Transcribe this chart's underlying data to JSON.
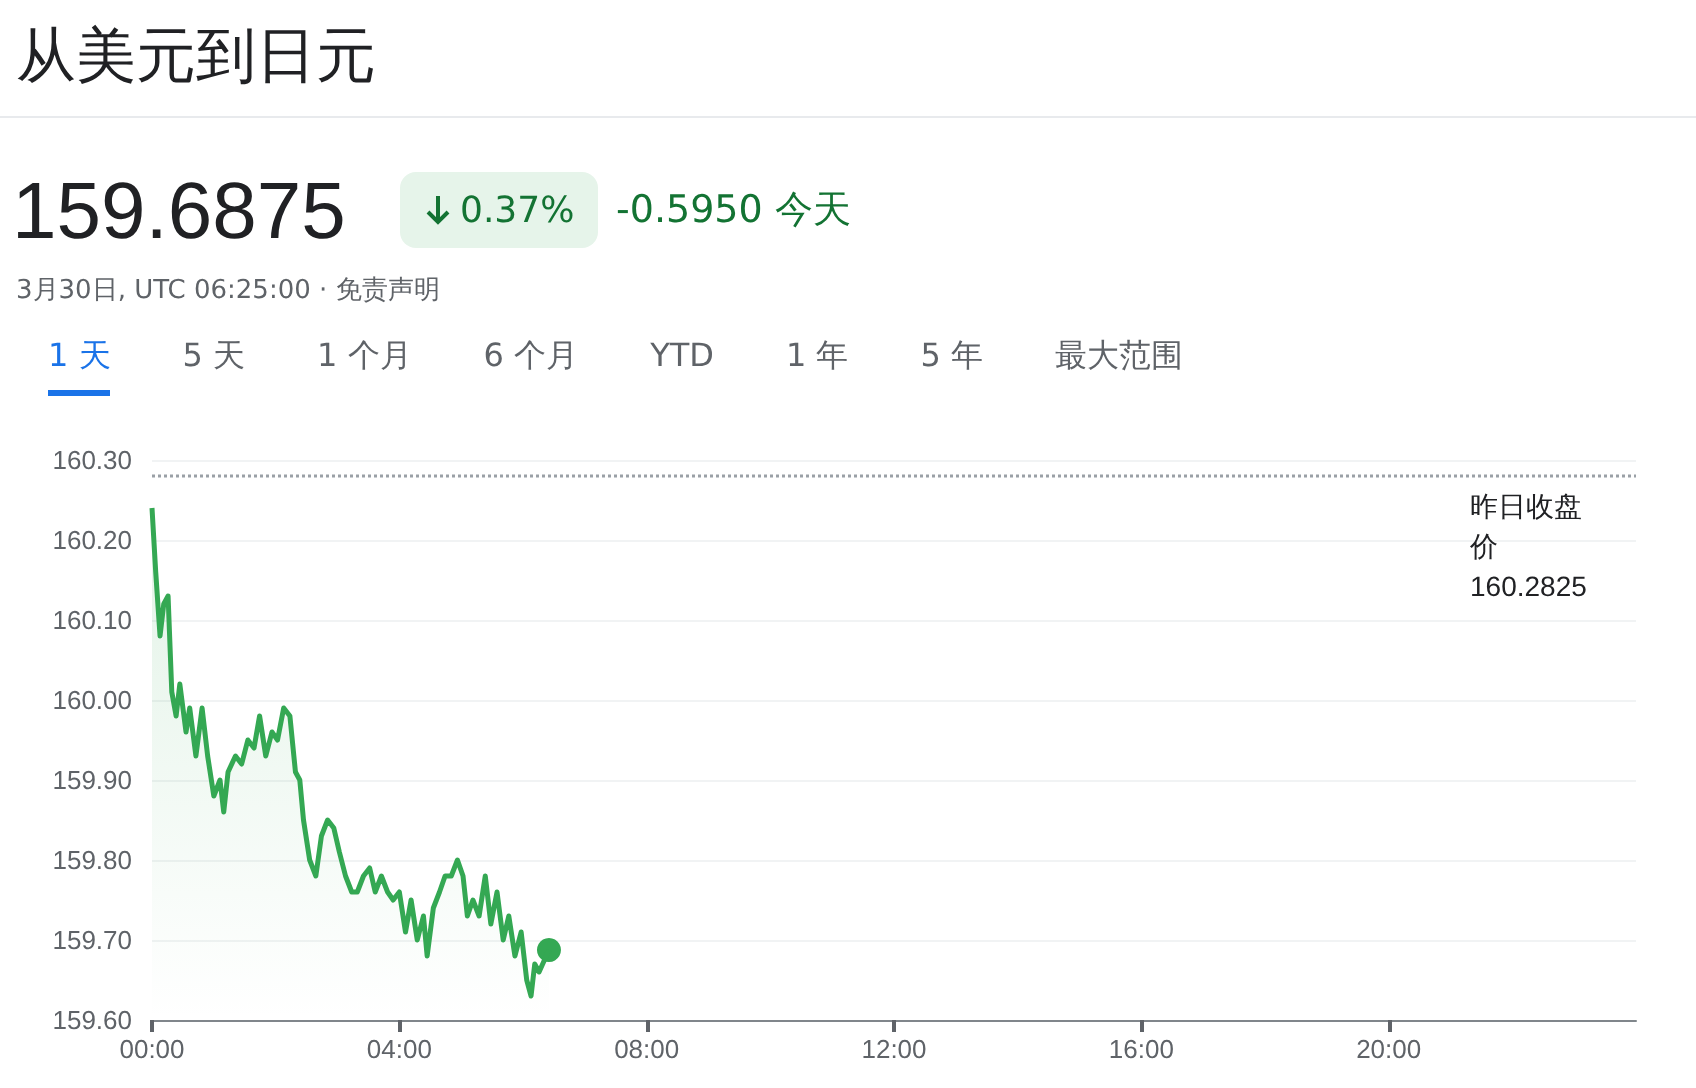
{
  "chart_data": {
    "type": "area",
    "title": "从美元到日元",
    "subtitle": "159.6875",
    "annotations": [
      "0.37%",
      "-0.5950 今天",
      "3月30日, UTC 06:25:00 · 免责声明",
      "1 天",
      "5 天",
      "1 个月",
      "6 个月",
      "YTD",
      "1 年",
      "5 年",
      "最大范围"
    ],
    "series": [
      {
        "color": "#34a853",
        "x": [
          0,
          0.06,
          0.13,
          0.19,
          0.26,
          0.32,
          0.39,
          0.45,
          0.55,
          0.61,
          0.71,
          0.81,
          0.9,
          1.0,
          1.1,
          1.16,
          1.23,
          1.35,
          1.45,
          1.55,
          1.65,
          1.74,
          1.84,
          1.94,
          2.03,
          2.13,
          2.23,
          2.32,
          2.39,
          2.45,
          2.55,
          2.65,
          2.74,
          2.84,
          2.94,
          3.03,
          3.13,
          3.23,
          3.32,
          3.42,
          3.52,
          3.61,
          3.71,
          3.81,
          3.9,
          4.0,
          4.1,
          4.19,
          4.29,
          4.39,
          4.45,
          4.55,
          4.65,
          4.74,
          4.84,
          4.94,
          5.03,
          5.1,
          5.19,
          5.29,
          5.39,
          5.48,
          5.58,
          5.68,
          5.77,
          5.87,
          5.97,
          6.06,
          6.13,
          6.19,
          6.26,
          6.42
        ],
        "values": [
          160.24,
          160.16,
          160.08,
          160.12,
          160.13,
          160.01,
          159.98,
          160.02,
          159.96,
          159.99,
          159.93,
          159.99,
          159.93,
          159.88,
          159.9,
          159.86,
          159.91,
          159.93,
          159.92,
          159.95,
          159.94,
          159.98,
          159.93,
          159.96,
          159.95,
          159.99,
          159.98,
          159.91,
          159.9,
          159.85,
          159.8,
          159.78,
          159.83,
          159.85,
          159.84,
          159.81,
          159.78,
          159.76,
          159.76,
          159.78,
          159.79,
          159.76,
          159.78,
          159.76,
          159.75,
          159.76,
          159.71,
          159.75,
          159.7,
          159.73,
          159.68,
          159.74,
          159.76,
          159.78,
          159.78,
          159.8,
          159.78,
          159.73,
          159.75,
          159.73,
          159.78,
          159.72,
          159.76,
          159.7,
          159.73,
          159.68,
          159.71,
          159.65,
          159.63,
          159.67,
          159.66,
          159.6875
        ]
      },
      {
        "type": "scatter",
        "marker": "circle",
        "color": "#34a853",
        "x": [
          6.42
        ],
        "values": [
          159.6875
        ]
      }
    ],
    "xlim": [
      0,
      24
    ],
    "xticks": [
      {
        "value": 0,
        "label": "00:00"
      },
      {
        "value": 4,
        "label": "04:00"
      },
      {
        "value": 8,
        "label": "08:00"
      },
      {
        "value": 12,
        "label": "12:00"
      },
      {
        "value": 16,
        "label": "16:00"
      },
      {
        "value": 20,
        "label": "20:00"
      }
    ],
    "ylim": [
      159.6,
      160.3
    ],
    "yticks": [
      {
        "value": 159.6,
        "label": "159.60"
      },
      {
        "value": 159.7,
        "label": "159.70"
      },
      {
        "value": 159.8,
        "label": "159.80"
      },
      {
        "value": 159.9,
        "label": "159.90"
      },
      {
        "value": 160.0,
        "label": "160.00"
      },
      {
        "value": 160.1,
        "label": "160.10"
      },
      {
        "value": 160.2,
        "label": "160.20"
      },
      {
        "value": 160.3,
        "label": "160.30"
      }
    ],
    "grid": "y",
    "line_style": "solid",
    "ref_lines": [
      {
        "axis": "y",
        "value": 160.2825,
        "label": "昨日收盘价 160.2825",
        "color": "#9aa0a6",
        "line_style": "dotted"
      }
    ]
  }
}
